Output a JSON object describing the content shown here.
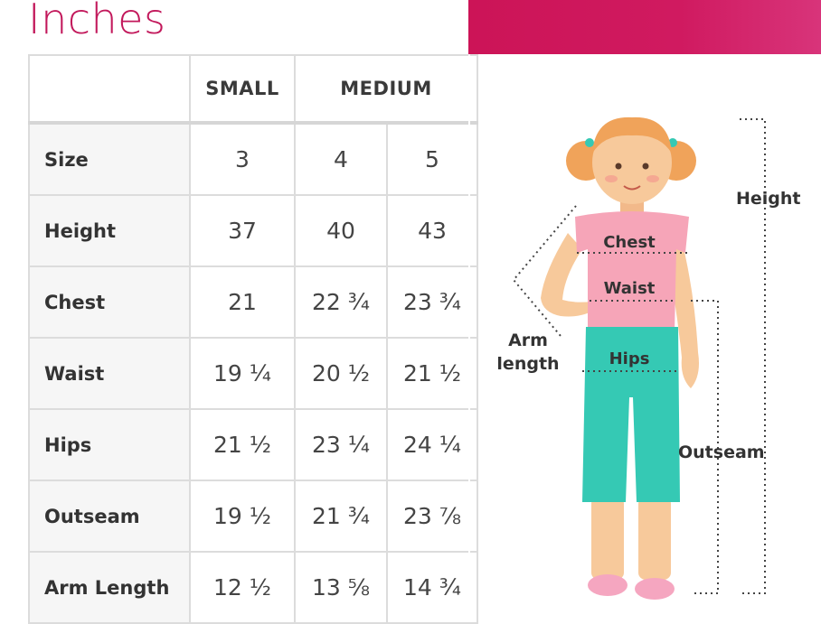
{
  "heading": "Inches",
  "table": {
    "groups": [
      {
        "label": "",
        "span": 1
      },
      {
        "label": "SMALL",
        "span": 1
      },
      {
        "label": "MEDIUM",
        "span": 2
      }
    ],
    "rows": [
      {
        "label": "Size",
        "values": [
          "3",
          "4",
          "5"
        ]
      },
      {
        "label": "Height",
        "values": [
          "37",
          "40",
          "43"
        ]
      },
      {
        "label": "Chest",
        "values": [
          "21",
          "22 ¾",
          "23 ¾"
        ]
      },
      {
        "label": "Waist",
        "values": [
          "19 ¼",
          "20 ½",
          "21 ½"
        ]
      },
      {
        "label": "Hips",
        "values": [
          "21 ½",
          "23 ¼",
          "24 ¼"
        ]
      },
      {
        "label": "Outseam",
        "values": [
          "19 ½",
          "21 ¾",
          "23 ⅞"
        ]
      },
      {
        "label": "Arm Length",
        "values": [
          "12 ½",
          "13 ⅝",
          "14 ¾"
        ]
      }
    ]
  },
  "figure": {
    "height_label": "Height",
    "chest_label": "Chest",
    "waist_label": "Waist",
    "hips_label": "Hips",
    "arm_label_1": "Arm",
    "arm_label_2": "length",
    "outseam_label": "Outseam"
  },
  "colors": {
    "heading": "#c2185b",
    "banner": "#cc1457",
    "shirt": "#f6a5b8",
    "pants": "#35c9b4",
    "skin": "#f7c99b",
    "hair": "#f0a35a"
  }
}
